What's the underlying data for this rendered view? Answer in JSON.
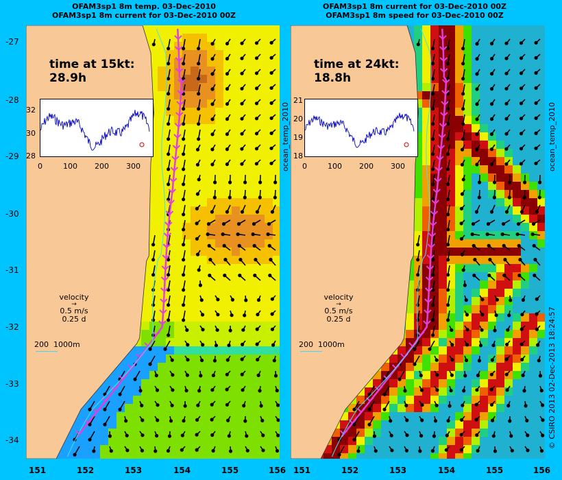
{
  "left": {
    "title_line1": "OFAM3sp1 8m temp. 03-Dec-2010",
    "title_line2": "OFAM3sp1 8m current for 03-Dec-2010 00Z",
    "time_label": "time at 15kt:",
    "time_value": "28.9h",
    "inset_y_ticks": [
      "32",
      "30",
      "28"
    ],
    "inset_x_ticks": [
      "0",
      "100",
      "200",
      "300"
    ],
    "velocity_label": "velocity",
    "velocity_speed": "0.5 m/s",
    "velocity_days": "0.25 d",
    "depth_legend": "200  1000m",
    "colormap": "temperature"
  },
  "right": {
    "title_line1": "OFAM3sp1 8m current for 03-Dec-2010 00Z",
    "title_line2": "OFAM3sp1 8m speed for 03-Dec-2010 00Z",
    "time_label": "time at 24kt:",
    "time_value": "18.8h",
    "inset_y_ticks": [
      "21",
      "20",
      "19",
      "18"
    ],
    "inset_x_ticks": [
      "0",
      "100",
      "200",
      "300"
    ],
    "velocity_label": "velocity",
    "velocity_speed": "0.5 m/s",
    "velocity_days": "0.25 d",
    "depth_legend": "200  1000m",
    "colormap": "speed"
  },
  "lat_ticks": [
    "-27",
    "-28",
    "-29",
    "-30",
    "-31",
    "-32",
    "-33",
    "-34"
  ],
  "lon_ticks": [
    "151",
    "152",
    "153",
    "154",
    "155",
    "156"
  ],
  "side_labels": {
    "middle": "ocean_temp_2010",
    "right": "ocean_temp_2010"
  },
  "copyright": "© CSIRO 2013   02-Dec-2013 18:24:57",
  "colors": {
    "background": "#00c4ff",
    "land": "#f8c896",
    "route": "#e040e0",
    "vector": "#000000"
  }
}
